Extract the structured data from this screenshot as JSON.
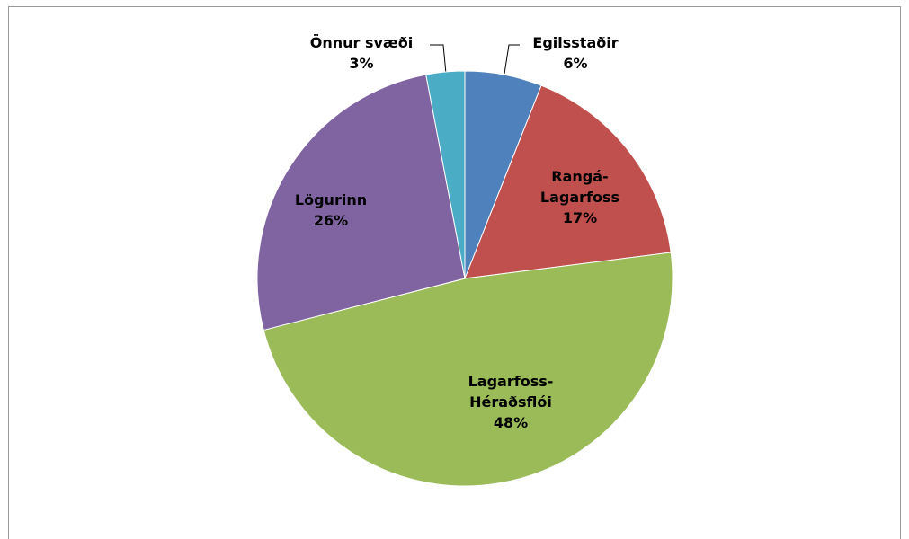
{
  "chart_data": {
    "type": "pie",
    "categories": [
      "Egilsstaðir",
      "Rangá-Lagarfoss",
      "Lagarfoss-Héraðsflói",
      "Lögurinn",
      "Önnur svæði"
    ],
    "values": [
      6,
      17,
      48,
      26,
      3
    ],
    "value_labels": [
      "6%",
      "17%",
      "48%",
      "26%",
      "3%"
    ],
    "colors": [
      "#4f81bd",
      "#c0504d",
      "#9bbb59",
      "#8064a2",
      "#4bacc6"
    ]
  }
}
